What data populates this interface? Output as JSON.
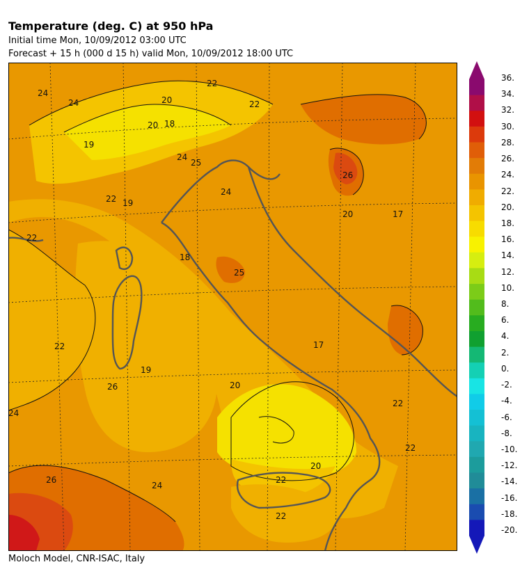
{
  "header": {
    "title": "Temperature (deg. C) at 950 hPa",
    "initial_time": "Initial time  Mon, 10/09/2012  03:00 UTC",
    "forecast": "Forecast  +  15 h  (000 d 15 h)  valid Mon, 10/09/2012 18:00 UTC"
  },
  "footer": {
    "credit": "Moloch Model, CNR-ISAC, Italy"
  },
  "map": {
    "region": "Italy and surrounding seas",
    "gridlines": "dotted lat/lon",
    "contour_labels": [
      "24",
      "24",
      "22",
      "20",
      "22",
      "20",
      "18",
      "19",
      "24",
      "25",
      "24",
      "26",
      "22",
      "19",
      "20",
      "17",
      "22",
      "18",
      "25",
      "17",
      "22",
      "19",
      "20",
      "22",
      "22",
      "26",
      "24",
      "20",
      "22",
      "22",
      "26",
      "24"
    ],
    "colors": {
      "t16": "#f7fc2e",
      "t18": "#f5e100",
      "t20": "#f4c400",
      "t22": "#f0b000",
      "t24": "#e99800",
      "t26": "#e06e00",
      "t28": "#db4a10",
      "t30": "#d01818",
      "coast": "#555555"
    }
  },
  "colorbar": {
    "unit": "deg. C",
    "ticks": [
      "36.",
      "34.",
      "32.",
      "30.",
      "28.",
      "26.",
      "24.",
      "22.",
      "20.",
      "18.",
      "16.",
      "14.",
      "12.",
      "10.",
      "8.",
      "6.",
      "4.",
      "2.",
      "0.",
      "-2.",
      "-4.",
      "-6.",
      "-8.",
      "-10.",
      "-12.",
      "-14.",
      "-16.",
      "-18.",
      "-20."
    ],
    "colors": [
      "#8a0a6e",
      "#b00f48",
      "#d21010",
      "#dc3a0c",
      "#e05e08",
      "#e27c06",
      "#e99400",
      "#f0ac00",
      "#f4c400",
      "#f7dc00",
      "#f8f200",
      "#d6ee10",
      "#a8dc14",
      "#7ccc18",
      "#52bc1c",
      "#28ac20",
      "#10a030",
      "#14b874",
      "#14d0b4",
      "#18e4e4",
      "#10cce8",
      "#14c0d4",
      "#18b4c0",
      "#20a8b0",
      "#1c9c9c",
      "#208c98",
      "#1a70a4",
      "#1a4cb0",
      "#1418b8"
    ]
  }
}
